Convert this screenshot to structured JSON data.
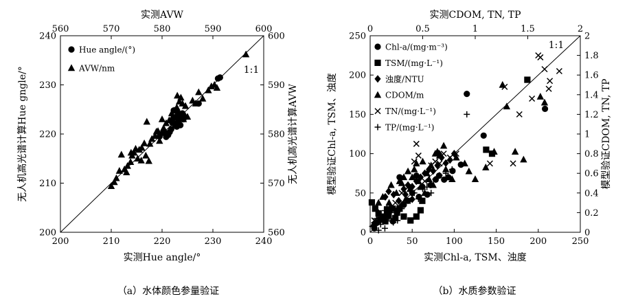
{
  "colors": {
    "ink": "#000000",
    "background": "#ffffff"
  },
  "chart_data": [
    {
      "type": "scatter",
      "panel": "a",
      "caption": "（a）水体颜色参量验证",
      "title": "实测AVW",
      "xlabel": "实测Hue angle/°",
      "ylabel": "无人机高光谱计算Hue gngle/°",
      "y2label": "无人机高光谱计算AVW",
      "xlim": [
        200,
        240
      ],
      "ylim": [
        200,
        240
      ],
      "x2lim": [
        560,
        600
      ],
      "y2lim": [
        560,
        600
      ],
      "xticks": [
        "200",
        "210",
        "220",
        "230",
        "240"
      ],
      "yticks": [
        "200",
        "210",
        "220",
        "230",
        "240"
      ],
      "x2ticks": [
        "560",
        "570",
        "580",
        "590",
        "600"
      ],
      "y2ticks": [
        "560",
        "570",
        "580",
        "590",
        "600"
      ],
      "one_to_one_label": "1:1",
      "grid": false,
      "legend_position": "top-left",
      "series": [
        {
          "name": "Hue angle/(°)",
          "marker": "circle",
          "axes": "bottom-left",
          "points": [
            [
              219.5,
              219.5
            ],
            [
              220.5,
              220.2
            ],
            [
              221.2,
              219.8
            ],
            [
              221.8,
              221.0
            ],
            [
              222.0,
              222.3
            ],
            [
              222.2,
              223.2
            ],
            [
              222.5,
              222.0
            ],
            [
              222.8,
              223.5
            ],
            [
              223.0,
              224.5
            ],
            [
              223.2,
              222.5
            ],
            [
              223.5,
              223.2
            ],
            [
              223.8,
              224.0
            ],
            [
              224.0,
              224.2
            ],
            [
              222.9,
              221.5
            ],
            [
              222.3,
              224.8
            ],
            [
              223.6,
              221.8
            ],
            [
              220.8,
              219.4
            ],
            [
              227.2,
              226.2
            ],
            [
              231.0,
              231.3
            ],
            [
              231.4,
              231.5
            ],
            [
              221.5,
              220.4
            ],
            [
              224.2,
              223.0
            ]
          ]
        },
        {
          "name": "AVW/nm",
          "marker": "triangle",
          "axes": "top-right",
          "points": [
            [
              570.0,
              569.4
            ],
            [
              570.6,
              570.2
            ],
            [
              571.0,
              571.0
            ],
            [
              571.6,
              572.5
            ],
            [
              572.0,
              575.8
            ],
            [
              572.6,
              572.8
            ],
            [
              573.2,
              573.5
            ],
            [
              573.8,
              574.3
            ],
            [
              574.1,
              575.6
            ],
            [
              574.5,
              576.2
            ],
            [
              574.8,
              577.0
            ],
            [
              575.2,
              575.0
            ],
            [
              575.5,
              576.8
            ],
            [
              576.0,
              577.2
            ],
            [
              576.5,
              578.1
            ],
            [
              577.0,
              582.5
            ],
            [
              577.4,
              574.5
            ],
            [
              577.6,
              578.0
            ],
            [
              578.0,
              579.0
            ],
            [
              578.6,
              579.6
            ],
            [
              579.2,
              580.6
            ],
            [
              579.9,
              580.2
            ],
            [
              580.3,
              581.2
            ],
            [
              580.8,
              582.2
            ],
            [
              581.4,
              582.8
            ],
            [
              581.9,
              584.2
            ],
            [
              582.4,
              584.8
            ],
            [
              582.9,
              585.4
            ],
            [
              583.4,
              586.6
            ],
            [
              583.7,
              587.4
            ],
            [
              584.0,
              586.2
            ],
            [
              584.5,
              583.8
            ],
            [
              585.0,
              583.5
            ],
            [
              586.0,
              586.8
            ],
            [
              587.2,
              588.5
            ],
            [
              588.0,
              587.2
            ],
            [
              589.1,
              588.9
            ],
            [
              589.7,
              589.7
            ],
            [
              590.3,
              590.0
            ],
            [
              596.5,
              596.2
            ],
            [
              583.3,
              582.6
            ],
            [
              582.7,
              581.9
            ],
            [
              584.6,
              585.7
            ],
            [
              579.5,
              578.6
            ],
            [
              581.0,
              580.0
            ],
            [
              575.9,
              574.6
            ],
            [
              573.0,
              572.2
            ],
            [
              583.0,
              587.8
            ],
            [
              586.6,
              586.2
            ],
            [
              590.8,
              589.4
            ],
            [
              578.9,
              580.5
            ],
            [
              580.0,
              583.0
            ],
            [
              584.2,
              583.0
            ],
            [
              573.9,
              576.2
            ],
            [
              576.8,
              575.6
            ]
          ]
        }
      ]
    },
    {
      "type": "scatter",
      "panel": "b",
      "caption": "（b）水质参数验证",
      "title": "实测CDOM, TN, TP",
      "xlabel": "实测Chl-a, TSM、浊度",
      "ylabel": "模型验证Chl-a, TSM、浊度",
      "y2label": "模型验证CDOM, TN, TP",
      "xlim": [
        0,
        250
      ],
      "ylim": [
        0,
        250
      ],
      "x2lim": [
        0,
        2
      ],
      "y2lim": [
        0,
        2
      ],
      "xticks": [
        "0",
        "50",
        "100",
        "150",
        "200",
        "250"
      ],
      "yticks": [
        "0",
        "50",
        "100",
        "150",
        "200",
        "250"
      ],
      "x2ticks": [
        "0",
        "0.5",
        "1",
        "1.5",
        "2"
      ],
      "y2ticks": [
        "0",
        "0.2",
        "0.4",
        "0.6",
        "0.8",
        "1",
        "1.2",
        "1.4",
        "1.6",
        "1.8",
        "2"
      ],
      "one_to_one_label": "1:1",
      "grid": false,
      "legend_position": "top-left",
      "series": [
        {
          "name": "Chl-a/(mg·m⁻³)",
          "marker": "circle",
          "axes": "bottom-left",
          "points": [
            [
              5,
              5
            ],
            [
              8,
              12
            ],
            [
              15,
              18
            ],
            [
              20,
              22
            ],
            [
              25,
              30
            ],
            [
              27,
              14
            ],
            [
              33,
              28
            ],
            [
              35,
              70
            ],
            [
              45,
              40
            ],
            [
              50,
              50
            ],
            [
              55,
              72
            ],
            [
              62,
              58
            ],
            [
              68,
              48
            ],
            [
              72,
              60
            ],
            [
              78,
              67
            ],
            [
              82,
              72
            ],
            [
              88,
              67
            ],
            [
              93,
              70
            ],
            [
              98,
              78
            ],
            [
              108,
              86
            ],
            [
              115,
              176
            ],
            [
              135,
              123
            ],
            [
              208,
              157
            ],
            [
              40,
              35
            ],
            [
              58,
              45
            ]
          ]
        },
        {
          "name": "TSM/(mg·L⁻¹)",
          "marker": "square",
          "axes": "bottom-left",
          "points": [
            [
              2,
              38
            ],
            [
              6,
              30
            ],
            [
              10,
              24
            ],
            [
              12,
              16
            ],
            [
              15,
              20
            ],
            [
              18,
              14
            ],
            [
              20,
              28
            ],
            [
              22,
              22
            ],
            [
              26,
              30
            ],
            [
              30,
              18
            ],
            [
              32,
              25
            ],
            [
              35,
              30
            ],
            [
              40,
              20
            ],
            [
              48,
              15
            ],
            [
              55,
              20
            ],
            [
              60,
              28
            ],
            [
              62,
              40
            ],
            [
              138,
              105
            ],
            [
              145,
              100
            ],
            [
              187,
              194
            ]
          ]
        },
        {
          "name": "浊度/NTU",
          "marker": "diamond",
          "axes": "bottom-left",
          "points": [
            [
              18,
              45
            ],
            [
              22,
              52
            ],
            [
              28,
              48
            ],
            [
              34,
              40
            ],
            [
              40,
              55
            ],
            [
              45,
              60
            ],
            [
              50,
              58
            ],
            [
              55,
              65
            ],
            [
              60,
              70
            ],
            [
              65,
              75
            ],
            [
              70,
              80
            ],
            [
              75,
              78
            ],
            [
              80,
              85
            ],
            [
              82,
              100
            ],
            [
              85,
              95
            ],
            [
              90,
              88
            ],
            [
              95,
              92
            ],
            [
              100,
              100
            ],
            [
              50,
              42
            ],
            [
              38,
              35
            ],
            [
              42,
              48
            ]
          ]
        },
        {
          "name": "CDOM/m",
          "marker": "triangle",
          "axes": "top-right",
          "points": [
            [
              0.03,
              0.08
            ],
            [
              0.08,
              0.3
            ],
            [
              0.12,
              0.36
            ],
            [
              0.18,
              0.3
            ],
            [
              0.2,
              0.48
            ],
            [
              0.25,
              0.4
            ],
            [
              0.28,
              0.52
            ],
            [
              0.3,
              0.5
            ],
            [
              0.32,
              0.56
            ],
            [
              0.36,
              0.62
            ],
            [
              0.38,
              0.44
            ],
            [
              0.4,
              0.56
            ],
            [
              0.42,
              0.64
            ],
            [
              0.44,
              0.7
            ],
            [
              0.46,
              0.52
            ],
            [
              0.5,
              0.72
            ],
            [
              0.52,
              0.4
            ],
            [
              0.54,
              0.6
            ],
            [
              0.56,
              0.54
            ],
            [
              0.58,
              0.68
            ],
            [
              0.62,
              0.8
            ],
            [
              0.64,
              0.82
            ],
            [
              0.66,
              0.78
            ],
            [
              0.7,
              0.88
            ],
            [
              0.72,
              0.64
            ],
            [
              0.74,
              0.56
            ],
            [
              0.78,
              0.54
            ],
            [
              0.82,
              0.76
            ],
            [
              0.9,
              0.7
            ],
            [
              0.94,
              0.62
            ],
            [
              1.0,
              0.54
            ],
            [
              1.1,
              0.66
            ],
            [
              1.18,
              0.82
            ],
            [
              1.26,
              1.5
            ],
            [
              1.3,
              1.28
            ],
            [
              1.38,
              0.82
            ],
            [
              1.46,
              0.74
            ],
            [
              1.62,
              1.38
            ],
            [
              1.66,
              1.32
            ],
            [
              0.34,
              0.34
            ],
            [
              0.48,
              0.46
            ],
            [
              0.6,
              0.48
            ]
          ]
        },
        {
          "name": "TN/(mg·L⁻¹)",
          "marker": "cross",
          "axes": "top-right",
          "points": [
            [
              0.04,
              0.12
            ],
            [
              0.1,
              0.16
            ],
            [
              0.18,
              0.22
            ],
            [
              0.24,
              0.3
            ],
            [
              0.3,
              0.4
            ],
            [
              0.36,
              0.46
            ],
            [
              0.42,
              0.72
            ],
            [
              0.46,
              0.78
            ],
            [
              0.52,
              0.52
            ],
            [
              0.58,
              0.68
            ],
            [
              0.62,
              0.72
            ],
            [
              0.7,
              0.8
            ],
            [
              0.76,
              0.76
            ],
            [
              0.82,
              0.8
            ],
            [
              1.14,
              0.7
            ],
            [
              1.28,
              1.48
            ],
            [
              1.36,
              0.7
            ],
            [
              1.42,
              1.2
            ],
            [
              1.54,
              1.36
            ],
            [
              1.6,
              1.8
            ],
            [
              1.62,
              1.78
            ],
            [
              1.66,
              1.66
            ],
            [
              1.7,
              1.46
            ],
            [
              1.71,
              1.54
            ],
            [
              1.8,
              1.64
            ],
            [
              0.44,
              0.9
            ],
            [
              0.54,
              0.6
            ],
            [
              0.66,
              0.7
            ]
          ]
        },
        {
          "name": "TP/(mg·L⁻¹)",
          "marker": "plus",
          "axes": "top-right",
          "points": [
            [
              0.02,
              0.06
            ],
            [
              0.04,
              0.1
            ],
            [
              0.06,
              0.14
            ],
            [
              0.08,
              0.2
            ],
            [
              0.1,
              0.08
            ],
            [
              0.12,
              0.16
            ],
            [
              0.14,
              0.22
            ],
            [
              0.16,
              0.26
            ],
            [
              0.18,
              0.14
            ],
            [
              0.2,
              0.2
            ],
            [
              0.22,
              0.1
            ],
            [
              0.24,
              0.24
            ],
            [
              0.26,
              0.12
            ],
            [
              0.3,
              0.24
            ],
            [
              0.34,
              0.3
            ],
            [
              0.38,
              0.32
            ],
            [
              0.42,
              0.4
            ],
            [
              0.46,
              0.34
            ],
            [
              0.5,
              0.44
            ],
            [
              0.54,
              0.46
            ],
            [
              0.58,
              0.4
            ],
            [
              0.62,
              0.54
            ],
            [
              0.66,
              0.58
            ],
            [
              0.72,
              0.6
            ],
            [
              0.78,
              0.64
            ],
            [
              0.92,
              1.2
            ],
            [
              0.08,
              0.02
            ],
            [
              0.14,
              0.04
            ]
          ]
        }
      ]
    }
  ]
}
